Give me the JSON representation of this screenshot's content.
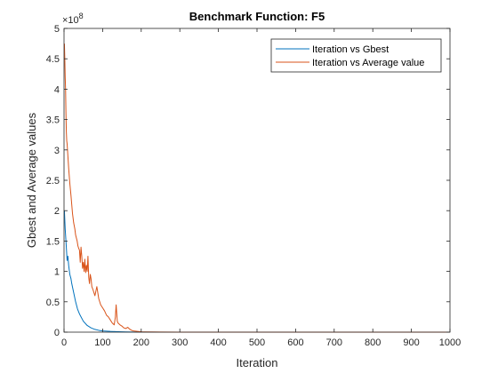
{
  "chart_data": {
    "type": "line",
    "title": "Benchmark Function: F5",
    "xlabel": "Iteration",
    "ylabel": "Gbest and Average values",
    "xlim": [
      0,
      1000
    ],
    "ylim": [
      0,
      500000000
    ],
    "x_ticks": [
      0,
      100,
      200,
      300,
      400,
      500,
      600,
      700,
      800,
      900,
      1000
    ],
    "x_tick_labels": [
      "0",
      "100",
      "200",
      "300",
      "400",
      "500",
      "600",
      "700",
      "800",
      "900",
      "1000"
    ],
    "y_ticks": [
      0,
      50000000,
      100000000,
      150000000,
      200000000,
      250000000,
      300000000,
      350000000,
      400000000,
      450000000,
      500000000
    ],
    "y_tick_labels": [
      "0",
      "0.5",
      "1",
      "1.5",
      "2",
      "2.5",
      "3",
      "3.5",
      "4",
      "4.5",
      "5"
    ],
    "y_exponent_base": "×10",
    "y_exponent_power": "8",
    "grid": false,
    "legend_position": "top-right",
    "series": [
      {
        "name": "Iteration vs Gbest",
        "color": "#0072BD",
        "x": [
          1,
          3,
          5,
          8,
          10,
          12,
          15,
          18,
          20,
          25,
          30,
          35,
          40,
          50,
          60,
          70,
          80,
          90,
          100,
          120,
          140,
          160,
          180,
          200,
          250,
          300,
          400,
          500,
          600,
          700,
          800,
          900,
          1000
        ],
        "y": [
          200000000,
          170000000,
          150000000,
          118000000,
          125000000,
          110000000,
          95000000,
          88000000,
          80000000,
          65000000,
          50000000,
          38000000,
          30000000,
          18000000,
          11000000,
          7000000,
          4500000,
          3000000,
          2000000,
          1200000,
          700000,
          400000,
          200000,
          100000,
          50000,
          20000,
          10000,
          5000,
          3000,
          2000,
          1000,
          800,
          500
        ]
      },
      {
        "name": "Iteration vs Average value",
        "color": "#D95319",
        "x": [
          1,
          2,
          3,
          4,
          5,
          6,
          7,
          8,
          10,
          12,
          15,
          18,
          20,
          22,
          25,
          28,
          30,
          32,
          34,
          36,
          38,
          40,
          42,
          44,
          46,
          48,
          50,
          52,
          54,
          56,
          58,
          60,
          62,
          64,
          66,
          68,
          70,
          72,
          75,
          80,
          85,
          90,
          95,
          100,
          105,
          110,
          115,
          120,
          125,
          130,
          133,
          135,
          138,
          140,
          145,
          150,
          155,
          160,
          165,
          170,
          175,
          180,
          190,
          200,
          210,
          250,
          300,
          400,
          500,
          600,
          700,
          800,
          900,
          1000
        ],
        "y": [
          475000000,
          450000000,
          420000000,
          400000000,
          360000000,
          330000000,
          315000000,
          310000000,
          290000000,
          270000000,
          245000000,
          225000000,
          210000000,
          195000000,
          180000000,
          170000000,
          160000000,
          155000000,
          150000000,
          142000000,
          138000000,
          135000000,
          115000000,
          140000000,
          125000000,
          105000000,
          115000000,
          100000000,
          120000000,
          98000000,
          110000000,
          100000000,
          125000000,
          90000000,
          80000000,
          95000000,
          88000000,
          75000000,
          70000000,
          60000000,
          75000000,
          55000000,
          45000000,
          40000000,
          35000000,
          28000000,
          25000000,
          20000000,
          15000000,
          12000000,
          25000000,
          45000000,
          18000000,
          15000000,
          12000000,
          10000000,
          7000000,
          6000000,
          8000000,
          5000000,
          3000000,
          2000000,
          1200000,
          500000,
          300000,
          100000,
          50000,
          30000,
          20000,
          15000,
          10000,
          8000,
          6000,
          5000
        ]
      }
    ]
  }
}
